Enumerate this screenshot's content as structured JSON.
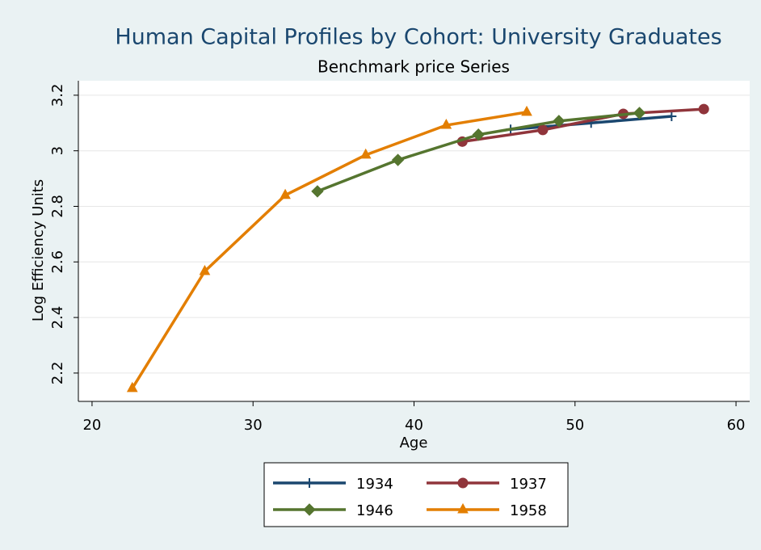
{
  "chart_data": {
    "type": "line",
    "title": "Human Capital Profiles by Cohort: University Graduates",
    "subtitle": "Benchmark price Series",
    "x_label": "Age",
    "y_label": "Log Efficiency Units",
    "xlim": [
      19.15,
      60.85
    ],
    "xticks": [
      20,
      30,
      40,
      50,
      60
    ],
    "ylim": [
      2.098,
      3.252
    ],
    "yticks": [
      2.2,
      2.4,
      2.6,
      2.8,
      3,
      3.2
    ],
    "grid": true,
    "series": [
      {
        "name": "1934",
        "color": "#1a476f",
        "marker": "plus",
        "x": [
          46,
          51,
          56
        ],
        "values": [
          3.077,
          3.1,
          3.124
        ]
      },
      {
        "name": "1937",
        "color": "#90353b",
        "marker": "circle",
        "x": [
          43,
          48,
          53,
          58
        ],
        "values": [
          3.033,
          3.075,
          3.133,
          3.15
        ]
      },
      {
        "name": "1946",
        "color": "#55752f",
        "marker": "diamond",
        "x": [
          34,
          39,
          44,
          49,
          54
        ],
        "values": [
          2.854,
          2.967,
          3.058,
          3.107,
          3.136
        ]
      },
      {
        "name": "1958",
        "color": "#e37e00",
        "marker": "triangle",
        "x": [
          22.5,
          27,
          32,
          37,
          42,
          47
        ],
        "values": [
          2.145,
          2.566,
          2.84,
          2.985,
          3.092,
          3.139
        ]
      }
    ]
  }
}
